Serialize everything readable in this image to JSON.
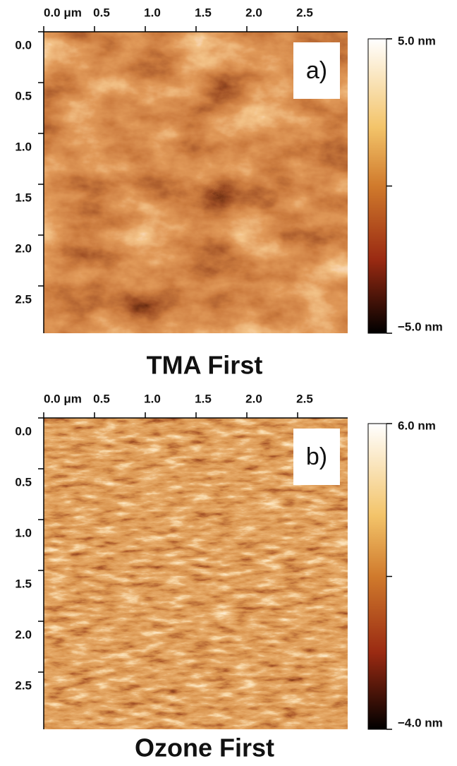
{
  "panels": [
    {
      "label": "a)",
      "caption": "TMA First",
      "x_ticks": [
        "0.0 μm",
        "0.5",
        "1.0",
        "1.5",
        "2.0",
        "2.5"
      ],
      "y_ticks": [
        "0.0",
        "0.5",
        "1.0",
        "1.5",
        "2.0",
        "2.5"
      ],
      "colorbar_max": "5.0 nm",
      "colorbar_min": "−5.0 nm"
    },
    {
      "label": "b)",
      "caption": "Ozone First",
      "x_ticks": [
        "0.0 μm",
        "0.5",
        "1.0",
        "1.5",
        "2.0",
        "2.5"
      ],
      "y_ticks": [
        "0.0",
        "0.5",
        "1.0",
        "1.5",
        "2.0",
        "2.5"
      ],
      "colorbar_max": "6.0 nm",
      "colorbar_min": "−4.0 nm"
    }
  ]
}
